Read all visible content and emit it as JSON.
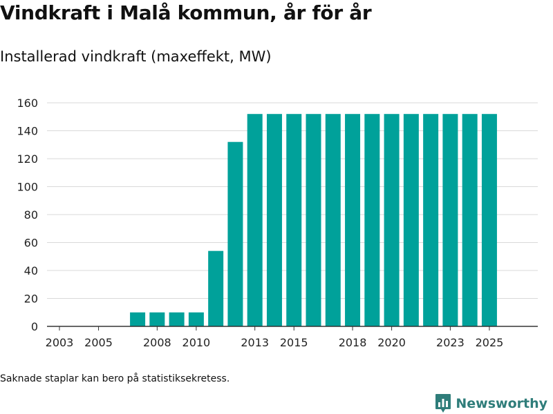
{
  "title": "Vindkraft i Malå kommun, år för år",
  "subtitle": "Installerad vindkraft (maxeffekt, MW)",
  "footnote": "Saknade staplar kan bero på statistiksekretess.",
  "brand": {
    "name": "Newsworthy",
    "icon": "bar-chart-speech-bubble-icon"
  },
  "colors": {
    "bar": "#00A19A",
    "grid": "#d9d9d9",
    "axis": "#333333",
    "brand": "#2f7d7a"
  },
  "chart_data": {
    "type": "bar",
    "categories": [
      "2003",
      "2004",
      "2005",
      "2006",
      "2007",
      "2008",
      "2009",
      "2010",
      "2011",
      "2012",
      "2013",
      "2014",
      "2015",
      "2016",
      "2017",
      "2018",
      "2019",
      "2020",
      "2021",
      "2022",
      "2023",
      "2024",
      "2025"
    ],
    "values": [
      0,
      0,
      0,
      0,
      10,
      10,
      10,
      10,
      54,
      132,
      152,
      152,
      152,
      152,
      152,
      152,
      152,
      152,
      152,
      152,
      152,
      152,
      152
    ],
    "x_tick_labels": [
      "2003",
      "2005",
      "2008",
      "2010",
      "2013",
      "2015",
      "2018",
      "2020",
      "2023",
      "2025"
    ],
    "y_ticks": [
      0,
      20,
      40,
      60,
      80,
      100,
      120,
      140,
      160
    ],
    "ylim": [
      0,
      160
    ],
    "grid": true,
    "legend": false
  }
}
